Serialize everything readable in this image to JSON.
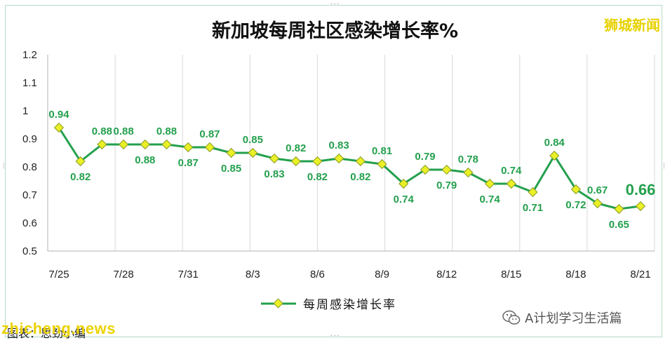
{
  "title": "新加坡每周社区感染增长率%",
  "brand": "狮城新闻",
  "legend_label": "每周感染增长率",
  "credit": "图表：思劲小编",
  "watermark": "zhicheng.news",
  "wechat_account": "A计划学习生活篇",
  "colors": {
    "line": "#23a04d",
    "marker": "#e9f026",
    "label": "#23a04d",
    "axis": "#b0b0b0"
  },
  "chart_data": {
    "type": "line",
    "title": "新加坡每周社区感染增长率%",
    "x": [
      "7/25",
      "7/26",
      "7/27",
      "7/28",
      "7/29",
      "7/30",
      "7/31",
      "8/1",
      "8/2",
      "8/3",
      "8/4",
      "8/5",
      "8/6",
      "8/7",
      "8/8",
      "8/9",
      "8/10",
      "8/11",
      "8/12",
      "8/13",
      "8/14",
      "8/15",
      "8/16",
      "8/17",
      "8/18",
      "8/19",
      "8/20",
      "8/21"
    ],
    "x_tick_labels": [
      "7/25",
      "7/28",
      "7/31",
      "8/3",
      "8/6",
      "8/9",
      "8/12",
      "8/15",
      "8/18",
      "8/21"
    ],
    "series": [
      {
        "name": "每周感染增长率",
        "values": [
          0.94,
          0.82,
          0.88,
          0.88,
          0.88,
          0.88,
          0.87,
          0.87,
          0.85,
          0.85,
          0.83,
          0.82,
          0.82,
          0.83,
          0.82,
          0.81,
          0.74,
          0.79,
          0.79,
          0.78,
          0.74,
          0.74,
          0.71,
          0.84,
          0.72,
          0.67,
          0.65,
          0.66
        ]
      }
    ],
    "data_labels": [
      "0.94",
      "0.82",
      "0.88",
      "0.88",
      "0.88",
      "0.88",
      "0.87",
      "0.87",
      "0.85",
      "0.85",
      "0.83",
      "0.82",
      "0.82",
      "0.83",
      "0.82",
      "0.81",
      "0.74",
      "0.79",
      "0.79",
      "0.78",
      "0.74",
      "0.74",
      "0.71",
      "0.84",
      "0.72",
      "0.67",
      "0.65",
      "0.66"
    ],
    "label_position": [
      "above",
      "below",
      "above",
      "above",
      "below",
      "above",
      "below",
      "above",
      "below",
      "above",
      "below",
      "above",
      "below",
      "above",
      "below",
      "above",
      "below",
      "above",
      "below",
      "above",
      "below",
      "above",
      "below",
      "above",
      "below",
      "above",
      "below",
      "above"
    ],
    "y_ticks": [
      "0.5",
      "0.6",
      "0.7",
      "0.8",
      "0.9",
      "1",
      "1.1",
      "1.2"
    ],
    "ylim": [
      0.5,
      1.2
    ],
    "grid": "vertical",
    "legend": "bottom"
  }
}
